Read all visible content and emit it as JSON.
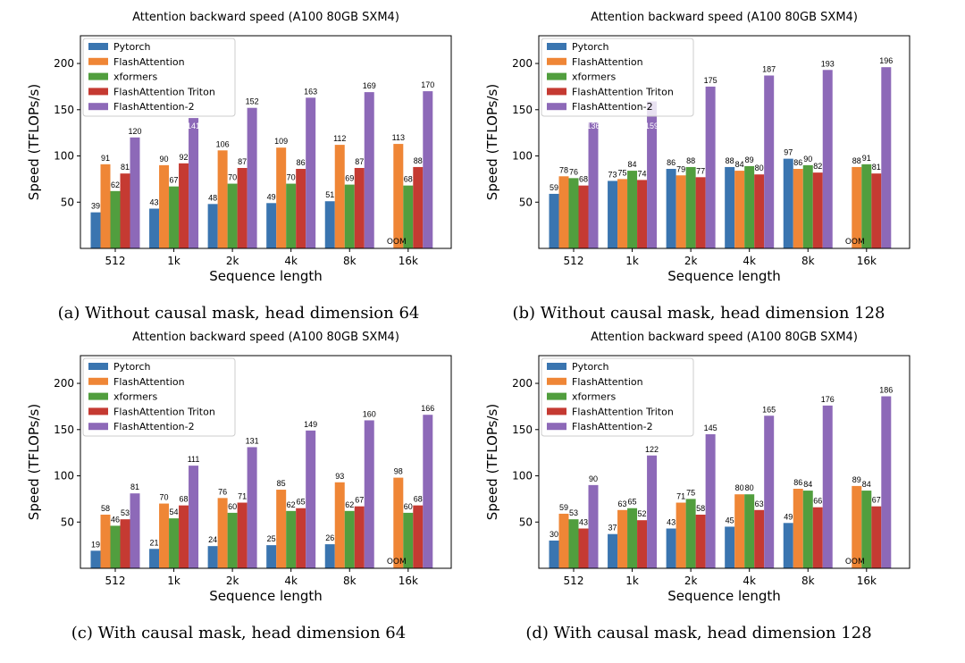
{
  "colors": {
    "Pytorch": "#3a75b0",
    "FlashAttention": "#ef8636",
    "xformers": "#519e3e",
    "FlashAttention Triton": "#c53a32",
    "FlashAttention-2": "#8d69b8"
  },
  "chart_data": [
    {
      "type": "bar",
      "title": "Attention backward speed (A100 80GB SXM4)",
      "caption": "(a) Without causal mask, head dimension 64",
      "xlabel": "Sequence length",
      "ylabel": "Speed (TFLOPs/s)",
      "ylim": [
        0,
        230
      ],
      "yticks": [
        50,
        100,
        150,
        200
      ],
      "categories": [
        "512",
        "1k",
        "2k",
        "4k",
        "8k",
        "16k"
      ],
      "legend": "top-left",
      "oom_label": "OOM",
      "series": [
        {
          "name": "Pytorch",
          "values": [
            39,
            43,
            48,
            49,
            51,
            null
          ]
        },
        {
          "name": "FlashAttention",
          "values": [
            91,
            90,
            106,
            109,
            112,
            113
          ]
        },
        {
          "name": "xformers",
          "values": [
            62,
            67,
            70,
            70,
            69,
            68
          ]
        },
        {
          "name": "FlashAttention Triton",
          "values": [
            81,
            92,
            87,
            86,
            87,
            88
          ]
        },
        {
          "name": "FlashAttention-2",
          "values": [
            120,
            141,
            152,
            163,
            169,
            170
          ]
        }
      ]
    },
    {
      "type": "bar",
      "title": "Attention backward speed (A100 80GB SXM4)",
      "caption": "(b) Without causal mask, head dimension 128",
      "xlabel": "Sequence length",
      "ylabel": "Speed (TFLOPs/s)",
      "ylim": [
        0,
        230
      ],
      "yticks": [
        50,
        100,
        150,
        200
      ],
      "categories": [
        "512",
        "1k",
        "2k",
        "4k",
        "8k",
        "16k"
      ],
      "legend": "top-left",
      "oom_label": "OOM",
      "series": [
        {
          "name": "Pytorch",
          "values": [
            59,
            73,
            86,
            88,
            97,
            null
          ]
        },
        {
          "name": "FlashAttention",
          "values": [
            78,
            75,
            79,
            84,
            86,
            88
          ]
        },
        {
          "name": "xformers",
          "values": [
            76,
            84,
            88,
            89,
            90,
            91
          ]
        },
        {
          "name": "FlashAttention Triton",
          "values": [
            68,
            74,
            77,
            80,
            82,
            81
          ]
        },
        {
          "name": "FlashAttention-2",
          "values": [
            136,
            159,
            175,
            187,
            193,
            196
          ]
        }
      ]
    },
    {
      "type": "bar",
      "title": "Attention backward speed (A100 80GB SXM4)",
      "caption": "(c) With causal mask, head dimension 64",
      "xlabel": "Sequence length",
      "ylabel": "Speed (TFLOPs/s)",
      "ylim": [
        0,
        230
      ],
      "yticks": [
        50,
        100,
        150,
        200
      ],
      "categories": [
        "512",
        "1k",
        "2k",
        "4k",
        "8k",
        "16k"
      ],
      "legend": "top-left",
      "oom_label": "OOM",
      "series": [
        {
          "name": "Pytorch",
          "values": [
            19,
            21,
            24,
            25,
            26,
            null
          ]
        },
        {
          "name": "FlashAttention",
          "values": [
            58,
            70,
            76,
            85,
            93,
            98
          ]
        },
        {
          "name": "xformers",
          "values": [
            46,
            54,
            60,
            62,
            62,
            60
          ]
        },
        {
          "name": "FlashAttention Triton",
          "values": [
            53,
            68,
            71,
            65,
            67,
            68
          ]
        },
        {
          "name": "FlashAttention-2",
          "values": [
            81,
            111,
            131,
            149,
            160,
            166
          ]
        }
      ]
    },
    {
      "type": "bar",
      "title": "Attention backward speed (A100 80GB SXM4)",
      "caption": "(d) With causal mask, head dimension 128",
      "xlabel": "Sequence length",
      "ylabel": "Speed (TFLOPs/s)",
      "ylim": [
        0,
        230
      ],
      "yticks": [
        50,
        100,
        150,
        200
      ],
      "categories": [
        "512",
        "1k",
        "2k",
        "4k",
        "8k",
        "16k"
      ],
      "legend": "top-left",
      "oom_label": "OOM",
      "series": [
        {
          "name": "Pytorch",
          "values": [
            30,
            37,
            43,
            45,
            49,
            null
          ]
        },
        {
          "name": "FlashAttention",
          "values": [
            59,
            63,
            71,
            80,
            86,
            89
          ]
        },
        {
          "name": "xformers",
          "values": [
            53,
            65,
            75,
            80,
            84,
            84
          ]
        },
        {
          "name": "FlashAttention Triton",
          "values": [
            43,
            52,
            58,
            63,
            66,
            67
          ]
        },
        {
          "name": "FlashAttention-2",
          "values": [
            90,
            122,
            145,
            165,
            176,
            186
          ]
        }
      ]
    }
  ]
}
